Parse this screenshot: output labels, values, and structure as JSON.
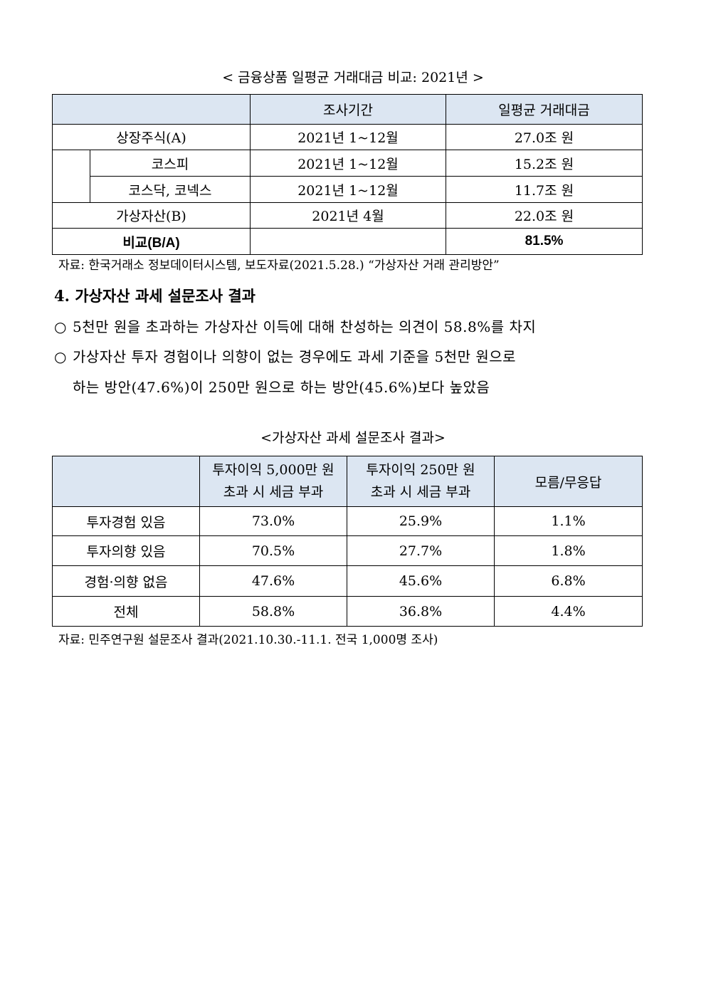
{
  "table1": {
    "caption": "< 금융상품 일평균 거래대금 비교: 2021년 >",
    "headers": [
      "",
      "조사기간",
      "일평균 거래대금"
    ],
    "rows": [
      {
        "label": "상장주식(A)",
        "period": "2021년 1~12월",
        "value": "27.0조 원"
      },
      {
        "label": "코스피",
        "period": "2021년 1~12월",
        "value": "15.2조 원"
      },
      {
        "label": "코스닥, 코넥스",
        "period": "2021년 1~12월",
        "value": "11.7조 원"
      },
      {
        "label": "가상자산(B)",
        "period": "2021년 4월",
        "value": "22.0조 원"
      },
      {
        "label": "비교(B/A)",
        "period": "",
        "value": "81.5%"
      }
    ],
    "source": "자료: 한국거래소 정보데이터시스템, 보도자료(2021.5.28.) “가상자산 거래 관리방안”"
  },
  "section": {
    "heading": "4. 가상자산 과세 설문조사 결과",
    "bullet_marker": "○",
    "bullets": [
      "5천만 원을 초과하는 가상자산 이득에 대해 찬성하는 의견이 58.8%를 차지",
      "가상자산 투자 경험이나 의향이 없는 경우에도 과세 기준을 5천만 원으로",
      "하는 방안(47.6%)이 250만 원으로 하는 방안(45.6%)보다 높았음"
    ]
  },
  "table2": {
    "caption": "<가상자산 과세 설문조사 결과>",
    "headers": [
      "",
      "투자이익 5,000만 원",
      "초과 시 세금 부과",
      "투자이익 250만 원",
      "초과 시 세금 부과",
      "모름/무응답"
    ],
    "rows": [
      {
        "label": "투자경험 있음",
        "values": [
          "73.0%",
          "25.9%",
          "1.1%"
        ]
      },
      {
        "label": "투자의향 있음",
        "values": [
          "70.5%",
          "27.7%",
          "1.8%"
        ]
      },
      {
        "label": "경험·의향 없음",
        "values": [
          "47.6%",
          "45.6%",
          "6.8%"
        ]
      },
      {
        "label": "전체",
        "values": [
          "58.8%",
          "36.8%",
          "4.4%"
        ]
      }
    ],
    "source": "자료: 민주연구원 설문조사 결과(2021.10.30.-11.1. 전국 1,000명 조사)"
  },
  "colors": {
    "header_bg": "#dce6f2"
  }
}
